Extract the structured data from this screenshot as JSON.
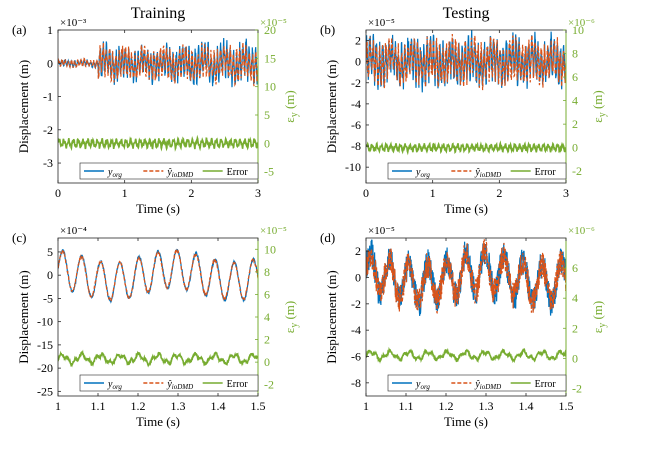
{
  "figure": {
    "col_titles": [
      "Training",
      "Testing"
    ]
  },
  "colors": {
    "y_org": "#0072BD",
    "y_hat": "#D95319",
    "error": "#77AC30",
    "axis": "#262626",
    "right_axis": "#77AC30"
  },
  "chart_data": [
    {
      "type": "line",
      "panel": "(a)",
      "title": "Training",
      "xlabel": "Time (s)",
      "ylabel": "Displacement (m)",
      "ylabel_right": "ε_y (m)",
      "left_exponent": "×10⁻³",
      "right_exponent": "×10⁻⁵",
      "xlim": [
        0,
        3
      ],
      "ylim": [
        -3.6,
        1
      ],
      "ylim_right": [
        -7,
        20
      ],
      "x_ticks": [
        0,
        1,
        2,
        3
      ],
      "x_tick_labels": [
        "0",
        "1",
        "2",
        "3"
      ],
      "y_ticks": [
        1,
        0,
        -1,
        -2,
        -3
      ],
      "y_tick_labels": [
        "1",
        "0",
        "-1",
        "-2",
        "-3"
      ],
      "y_ticks_right": [
        20,
        15,
        10,
        5,
        0,
        -5
      ],
      "y_tick_labels_right": [
        "20",
        "15",
        "10",
        "5",
        "0",
        "-5"
      ],
      "legend": [
        "y_org",
        "ŷ_ioDMD",
        "Error"
      ],
      "series": [
        {
          "name": "y_org",
          "axis": "left",
          "center": 0,
          "amplitude_segments": [
            [
              0,
              0.6,
              0.1
            ],
            [
              0.6,
              2.2,
              0.5
            ],
            [
              2.2,
              3,
              0.55
            ]
          ]
        },
        {
          "name": "ŷ_ioDMD",
          "axis": "left",
          "center": 0,
          "amplitude_segments": [
            [
              0,
              0.6,
              0.1
            ],
            [
              0.6,
              2.2,
              0.45
            ],
            [
              2.2,
              3,
              0.5
            ]
          ]
        },
        {
          "name": "Error",
          "axis": "right",
          "center": 0,
          "amplitude": 1.0
        }
      ]
    },
    {
      "type": "line",
      "panel": "(b)",
      "title": "Testing",
      "xlabel": "Time (s)",
      "ylabel": "Displacement (m)",
      "ylabel_right": "ε_y (m)",
      "left_exponent": "×10⁻⁵",
      "right_exponent": "×10⁻⁶",
      "xlim": [
        0,
        3
      ],
      "ylim": [
        -11.5,
        3
      ],
      "ylim_right": [
        -3,
        10
      ],
      "x_ticks": [
        0,
        1,
        2,
        3
      ],
      "x_tick_labels": [
        "0",
        "1",
        "2",
        "3"
      ],
      "y_ticks": [
        2,
        0,
        -2,
        -4,
        -6,
        -8,
        -10
      ],
      "y_tick_labels": [
        "2",
        "0",
        "-2",
        "-4",
        "-6",
        "-8",
        "-10"
      ],
      "y_ticks_right": [
        10,
        8,
        6,
        4,
        2,
        0,
        -2
      ],
      "y_tick_labels_right": [
        "10",
        "8",
        "6",
        "4",
        "2",
        "0",
        "-2"
      ],
      "legend": [
        "y_org",
        "ŷ_ioDMD",
        "Error"
      ],
      "series": [
        {
          "name": "y_org",
          "axis": "left",
          "center": 0,
          "amplitude": 2.0
        },
        {
          "name": "ŷ_ioDMD",
          "axis": "left",
          "center": 0,
          "amplitude": 1.8
        },
        {
          "name": "Error",
          "axis": "right",
          "center": 0,
          "amplitude": 0.4
        }
      ]
    },
    {
      "type": "line",
      "panel": "(c)",
      "title": "",
      "xlabel": "Time (s)",
      "ylabel": "Displacement (m)",
      "ylabel_right": "ε_y (m)",
      "left_exponent": "×10⁻⁴",
      "right_exponent": "×10⁻⁵",
      "xlim": [
        1,
        1.5
      ],
      "ylim": [
        -26,
        8
      ],
      "ylim_right": [
        -3,
        11
      ],
      "x_ticks": [
        1,
        1.1,
        1.2,
        1.3,
        1.4,
        1.5
      ],
      "x_tick_labels": [
        "1",
        "1.1",
        "1.2",
        "1.3",
        "1.4",
        "1.5"
      ],
      "y_ticks": [
        5,
        0,
        -5,
        -10,
        -15,
        -20,
        -25
      ],
      "y_tick_labels": [
        "5",
        "0",
        "-5",
        "-10",
        "-15",
        "-20",
        "-25"
      ],
      "y_ticks_right": [
        10,
        8,
        6,
        4,
        2,
        0,
        -2
      ],
      "y_tick_labels_right": [
        "10",
        "8",
        "6",
        "4",
        "2",
        "0",
        "-2"
      ],
      "legend": [
        "y_org",
        "ŷ_ioDMD",
        "Error"
      ],
      "series": [
        {
          "name": "y_org",
          "axis": "left",
          "center": 0,
          "amplitude": 5.5
        },
        {
          "name": "ŷ_ioDMD",
          "axis": "left",
          "center": 0,
          "amplitude": 5.3
        },
        {
          "name": "Error",
          "axis": "right",
          "center": 0.3,
          "amplitude": 0.6
        }
      ]
    },
    {
      "type": "line",
      "panel": "(d)",
      "title": "",
      "xlabel": "Time (s)",
      "ylabel": "Displacement (m)",
      "ylabel_right": "ε_y (m)",
      "left_exponent": "×10⁻⁵",
      "right_exponent": "×10⁻⁶",
      "xlim": [
        1,
        1.5
      ],
      "ylim": [
        -9,
        3
      ],
      "ylim_right": [
        -2.5,
        8
      ],
      "x_ticks": [
        1,
        1.1,
        1.2,
        1.3,
        1.4,
        1.5
      ],
      "x_tick_labels": [
        "1",
        "1.1",
        "1.2",
        "1.3",
        "1.4",
        "1.5"
      ],
      "y_ticks": [
        2,
        0,
        -2,
        -4,
        -6,
        -8
      ],
      "y_tick_labels": [
        "2",
        "0",
        "-2",
        "-4",
        "-6",
        "-8"
      ],
      "y_ticks_right": [
        6,
        4,
        2,
        0,
        -2
      ],
      "y_tick_labels_right": [
        "6",
        "4",
        "2",
        "0",
        "-2"
      ],
      "legend": [
        "y_org",
        "ŷ_ioDMD",
        "Error"
      ],
      "series": [
        {
          "name": "y_org",
          "axis": "left",
          "center": 0,
          "amplitude": 2.0
        },
        {
          "name": "ŷ_ioDMD",
          "axis": "left",
          "center": 0,
          "amplitude": 1.9
        },
        {
          "name": "Error",
          "axis": "right",
          "center": 0.2,
          "amplitude": 0.4
        }
      ]
    }
  ]
}
